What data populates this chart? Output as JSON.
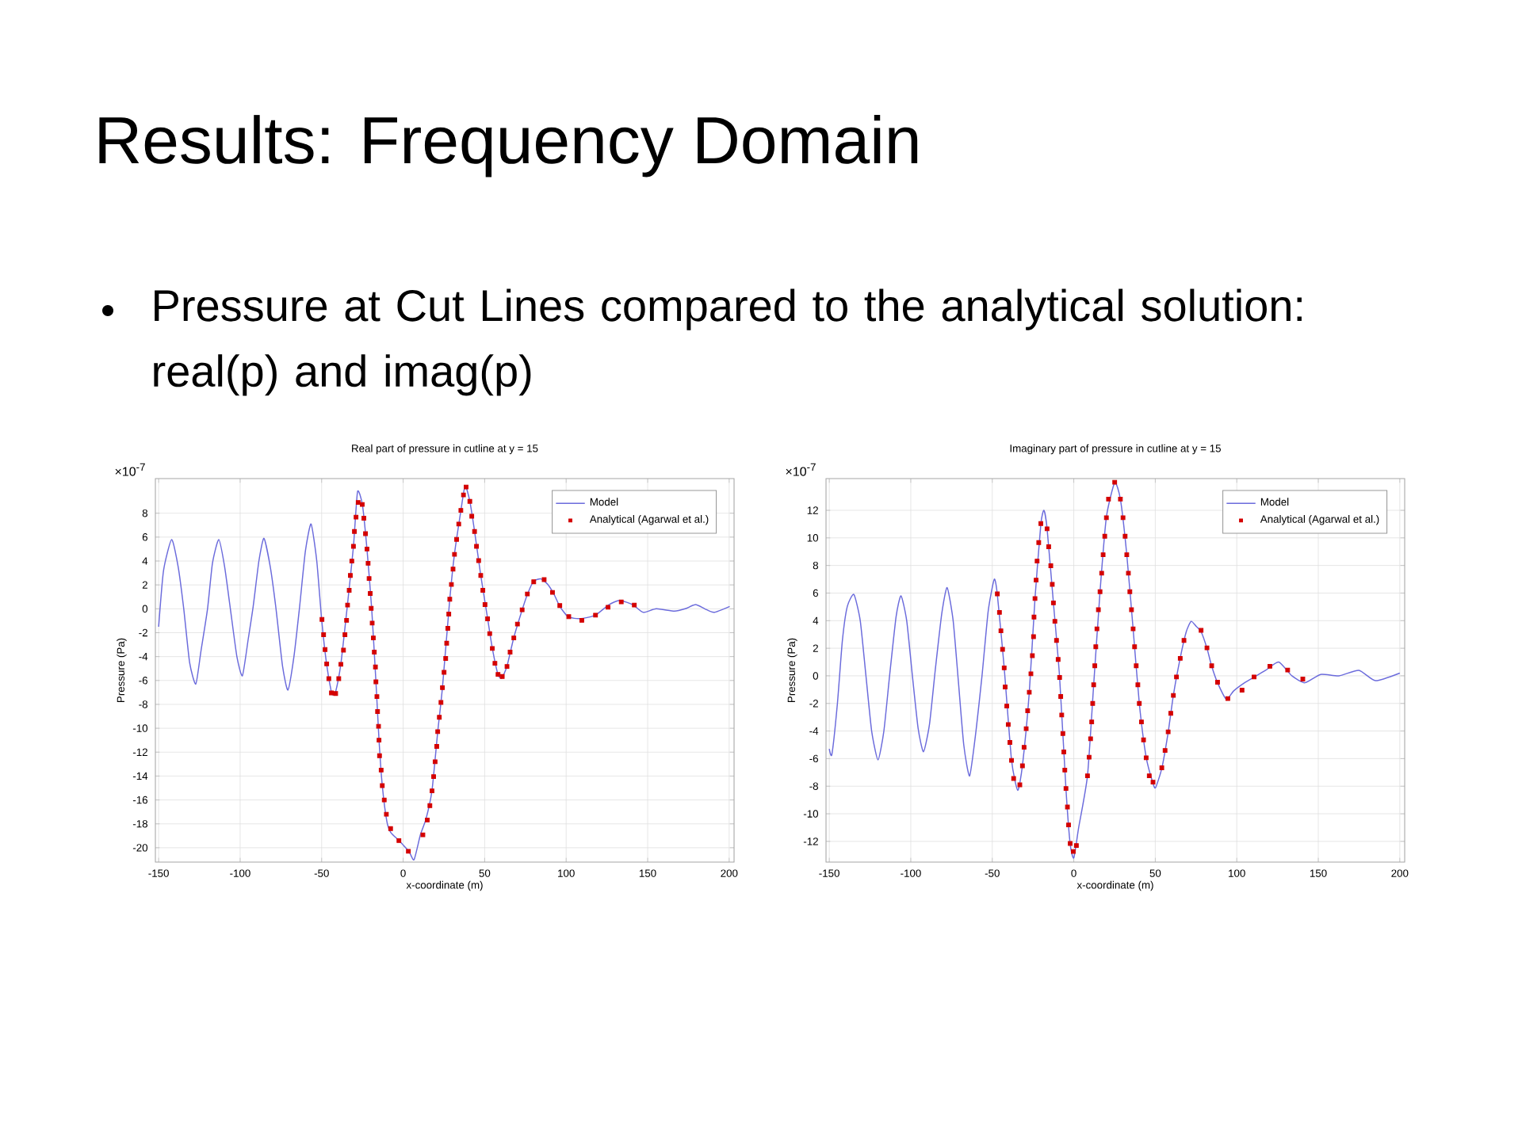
{
  "chart_data": [
    {
      "type": "other",
      "title": "Results: Frequency Domain",
      "annotations": [
        "Pressure at Cut Lines compared to the analytical solution: real(p) and imag(p)"
      ]
    },
    {
      "type": "line",
      "title": "Real part of pressure in cutline at y = 15",
      "xlabel": "x-coordinate (m)",
      "ylabel": "Pressure (Pa)",
      "annotations": [
        "×10$^{-7}$"
      ],
      "xlim": [
        -152,
        203
      ],
      "ylim": [
        -21.2,
        10.9
      ],
      "xticks": [
        -150,
        -100,
        -50,
        0,
        50,
        100,
        150,
        200
      ],
      "yticks": [
        -20,
        -18,
        -16,
        -14,
        -12,
        -10,
        -8,
        -6,
        -4,
        -2,
        0,
        2,
        4,
        6,
        8
      ],
      "grid": true,
      "legend": "top right",
      "series": [
        {
          "name": "Model",
          "type": "line",
          "marker": "none",
          "color": "#6b6bdc",
          "x": [
            -150,
            -147,
            -142,
            -138,
            -134.6,
            -131,
            -127.2,
            -124,
            -120,
            -117,
            -113.1,
            -109.5,
            -106,
            -102,
            -98.6,
            -95,
            -92,
            -88.5,
            -85.4,
            -81.5,
            -78,
            -74,
            -70.7,
            -67,
            -63.5,
            -60,
            -56.5,
            -53,
            -50,
            -47,
            -44,
            -43,
            -41.5,
            -38.2,
            -34.2,
            -30.5,
            -28,
            -25,
            -22.2,
            -19.3,
            -16.7,
            -14.8,
            -12.8,
            -10,
            -7.7,
            -2.6,
            3.5,
            6.7,
            10.6,
            14,
            17.7,
            21.2,
            24.1,
            28.6,
            31.5,
            35.4,
            38,
            40.9,
            43.8,
            47.6,
            51.8,
            54.7,
            58.2,
            60.5,
            63.7,
            67.9,
            73,
            76.2,
            80,
            84.6,
            89,
            92.6,
            96.1,
            100.6,
            105,
            110.3,
            118.3,
            126.3,
            132.8,
            140.8,
            147.3,
            155.3,
            166.5,
            173,
            179.4,
            185,
            190.6,
            200.3
          ],
          "values": [
            -1.5,
            3.2,
            5.8,
            3.5,
            0,
            -4.5,
            -6.3,
            -3.5,
            0,
            3.8,
            5.8,
            3.5,
            0,
            -4,
            -5.6,
            -2.5,
            0.2,
            4,
            5.9,
            3.5,
            0,
            -4.8,
            -6.8,
            -4,
            0.2,
            4.8,
            7.1,
            4,
            -0.9,
            -4.6,
            -7,
            -7.2,
            -7,
            -4.6,
            0.3,
            5.2,
            9.8,
            8.7,
            5,
            0,
            -6.1,
            -11,
            -14.8,
            -17.8,
            -18.7,
            -19.4,
            -20.3,
            -21,
            -18.9,
            -17.6,
            -15.2,
            -10.3,
            -6.6,
            0.8,
            4.6,
            8.2,
            10.3,
            9,
            6.5,
            2.8,
            -0.8,
            -3.3,
            -5.5,
            -5.8,
            -4.8,
            -2.4,
            -0.1,
            1.2,
            2.3,
            2.5,
            2,
            1.2,
            0.2,
            -0.6,
            -0.8,
            -0.8,
            -0.5,
            0.35,
            0.7,
            0.35,
            -0.3,
            0,
            -0.2,
            0,
            0.35,
            0,
            -0.3,
            0.2
          ]
        },
        {
          "name": "Analytical (Agarwal et al.)",
          "type": "scatter",
          "marker": "square",
          "color": "#d40000",
          "x": [
            -49.8,
            -48.8,
            -47.9,
            -46.9,
            -45.6,
            -44,
            -41.4,
            -39.5,
            -38.2,
            -36.6,
            -35.7,
            -34.7,
            -34.1,
            -33.1,
            -32.4,
            -31.5,
            -30.5,
            -29.9,
            -28.9,
            -27.6,
            -25.1,
            -24.1,
            -23.1,
            -22.2,
            -21.5,
            -20.9,
            -20.2,
            -19.6,
            -19,
            -18.3,
            -17.7,
            -17,
            -16.7,
            -16.1,
            -15.7,
            -15.1,
            -14.8,
            -14.5,
            -13.5,
            -12.8,
            -11.6,
            -10.3,
            -7.7,
            -2.6,
            3.2,
            12.1,
            14.8,
            16.4,
            17.7,
            18.7,
            19.6,
            20.6,
            21.2,
            22.2,
            23.2,
            24.1,
            25.1,
            26.1,
            26.7,
            27.4,
            28,
            28.6,
            29.6,
            30.6,
            31.5,
            32.8,
            34.1,
            35.4,
            37,
            38.6,
            40.9,
            42.1,
            43.8,
            45,
            46.3,
            47.6,
            48.9,
            50.2,
            51.8,
            53.1,
            54.7,
            56.3,
            58.2,
            60.8,
            63.7,
            65.6,
            67.9,
            70.1,
            73,
            76.2,
            80.1,
            86.5,
            91.6,
            96.1,
            101.6,
            109.6,
            118,
            125.7,
            133.8,
            141.8
          ],
          "values": [
            -0.89,
            -2.17,
            -3.41,
            -4.61,
            -5.85,
            -7.04,
            -7.09,
            -5.85,
            -4.65,
            -3.46,
            -2.17,
            -0.97,
            0.31,
            1.55,
            2.79,
            3.99,
            5.23,
            6.47,
            7.67,
            8.9,
            8.73,
            7.58,
            6.29,
            5,
            3.81,
            2.53,
            1.28,
            0.04,
            -1.2,
            -2.44,
            -3.63,
            -4.87,
            -6.11,
            -7.35,
            -8.6,
            -9.84,
            -11,
            -12.3,
            -13.5,
            -14.8,
            -16,
            -17.2,
            -18.4,
            -19.4,
            -20.3,
            -18.92,
            -17.68,
            -16.48,
            -15.24,
            -14.05,
            -12.8,
            -11.52,
            -10.28,
            -9.08,
            -7.84,
            -6.6,
            -5.32,
            -4.16,
            -2.88,
            -1.64,
            -0.44,
            0.8,
            2.04,
            3.32,
            4.56,
            5.81,
            7.09,
            8.24,
            9.53,
            10.19,
            8.99,
            7.75,
            6.47,
            5.23,
            4.03,
            2.79,
            1.55,
            0.35,
            -0.84,
            -2.08,
            -3.32,
            -4.56,
            -5.49,
            -5.67,
            -4.83,
            -3.63,
            -2.44,
            -1.28,
            -0.09,
            1.24,
            2.26,
            2.44,
            1.37,
            0.27,
            -0.66,
            -0.97,
            -0.53,
            0.13,
            0.58,
            0.31
          ]
        }
      ]
    },
    {
      "type": "line",
      "title": "Imaginary part of pressure in cutline at y = 15",
      "xlabel": "x-coordinate (m)",
      "ylabel": "Pressure (Pa)",
      "annotations": [
        "×10$^{-7}$"
      ],
      "xlim": [
        -152,
        203
      ],
      "ylim": [
        -13.5,
        14.3
      ],
      "xticks": [
        -150,
        -100,
        -50,
        0,
        50,
        100,
        150,
        200
      ],
      "yticks": [
        -12,
        -10,
        -8,
        -6,
        -4,
        -2,
        0,
        2,
        4,
        6,
        8,
        10,
        12
      ],
      "grid": true,
      "legend": "top right",
      "series": [
        {
          "name": "Model",
          "type": "line",
          "marker": "none",
          "color": "#6b6bdc",
          "x": [
            -150,
            -148.4,
            -145,
            -142,
            -139,
            -134.9,
            -131,
            -127.5,
            -124,
            -120.1,
            -116.5,
            -113,
            -109,
            -106,
            -102.5,
            -99,
            -95.5,
            -92.2,
            -88.5,
            -85,
            -81,
            -77.7,
            -74,
            -70.8,
            -67.5,
            -63.9,
            -60,
            -56.3,
            -52.5,
            -48.8,
            -46.9,
            -42.7,
            -38.2,
            -34.4,
            -31.5,
            -27.3,
            -23.8,
            -20.2,
            -18.3,
            -16.4,
            -12.5,
            -8.7,
            -4.8,
            -2.2,
            0,
            3,
            8.4,
            12.2,
            16.1,
            20,
            25.1,
            28.6,
            32.5,
            36.4,
            40.2,
            44.4,
            48.6,
            50.2,
            54,
            57.9,
            61.1,
            65.3,
            69,
            72,
            75,
            78.1,
            81.7,
            84.6,
            88.2,
            93.6,
            98,
            104.8,
            110.6,
            117.7,
            125.7,
            133.8,
            141.8,
            151.4,
            162.7,
            174.9,
            185.1,
            200
          ],
          "values": [
            -5.3,
            -5.7,
            -2,
            2.5,
            5,
            5.9,
            4,
            0,
            -4,
            -6.1,
            -4,
            0,
            4.3,
            5.8,
            4,
            0,
            -3.8,
            -5.5,
            -3.5,
            0.4,
            4.5,
            6.4,
            4,
            -0.4,
            -5,
            -7.25,
            -4,
            0,
            4.7,
            7,
            5.9,
            0.6,
            -6.1,
            -8.3,
            -6.5,
            -1.2,
            5.6,
            11,
            12,
            10.7,
            5.3,
            -0.1,
            -8.2,
            -12.2,
            -13.2,
            -11,
            -7.25,
            -0.65,
            6.1,
            11.5,
            14,
            12.8,
            8.8,
            3.4,
            -2,
            -5.9,
            -7.8,
            -8.1,
            -6.7,
            -4.1,
            -1.4,
            1.3,
            3.2,
            3.95,
            3.6,
            3.2,
            2,
            0.7,
            -0.5,
            -1.7,
            -1.1,
            -0.5,
            -0.1,
            0.4,
            1,
            0,
            -0.5,
            0.1,
            0,
            0.4,
            -0.35,
            0.2
          ]
        },
        {
          "name": "Analytical (Agarwal et al.)",
          "type": "scatter",
          "marker": "square",
          "color": "#d40000",
          "x": [
            -46.9,
            -45.6,
            -44.7,
            -43.7,
            -42.7,
            -42.1,
            -41.1,
            -40.2,
            -39.2,
            -38.2,
            -36.9,
            -33.1,
            -31.5,
            -30.5,
            -29.2,
            -28.3,
            -27.3,
            -26.3,
            -25.4,
            -24.7,
            -24.4,
            -23.8,
            -23.1,
            -22.5,
            -21.5,
            -20.2,
            -16.4,
            -15.4,
            -14.1,
            -13.2,
            -12.5,
            -11.6,
            -10.6,
            -9.6,
            -8.7,
            -8,
            -7.4,
            -6.7,
            -6.1,
            -5.5,
            -4.8,
            -3.9,
            -3.2,
            -2.2,
            -0.3,
            1.6,
            8.4,
            9.4,
            10.3,
            11,
            11.6,
            12.2,
            12.9,
            13.5,
            14.2,
            15.1,
            16.1,
            17.1,
            18,
            19,
            20,
            21.3,
            25.1,
            28.6,
            30.2,
            31.5,
            32.5,
            33.5,
            34.4,
            35.4,
            36.4,
            37.3,
            38.3,
            39.3,
            40.2,
            41.5,
            42.8,
            44.4,
            46.3,
            48.6,
            54,
            56,
            57.9,
            59.5,
            61.1,
            63,
            65.3,
            67.6,
            78.1,
            81.7,
            84.6,
            88.2,
            94.5,
            103.2,
            110.6,
            120.3,
            131.2,
            140.5
          ],
          "values": [
            5.94,
            4.6,
            3.26,
            1.92,
            0.58,
            -0.81,
            -2.19,
            -3.53,
            -4.83,
            -6.13,
            -7.44,
            -7.9,
            -6.52,
            -5.18,
            -3.83,
            -2.53,
            -1.19,
            0.15,
            1.46,
            2.84,
            4.26,
            5.6,
            6.94,
            8.32,
            9.66,
            11.04,
            10.66,
            9.36,
            7.98,
            6.63,
            5.29,
            3.95,
            2.57,
            1.19,
            -0.12,
            -1.5,
            -2.84,
            -4.18,
            -5.52,
            -6.83,
            -8.17,
            -9.51,
            -10.81,
            -12.15,
            -12.73,
            -12.3,
            -7.25,
            -5.9,
            -4.56,
            -3.34,
            -2,
            -0.65,
            0.73,
            2.11,
            3.41,
            4.79,
            6.1,
            7.44,
            8.78,
            10.12,
            11.46,
            12.81,
            14.03,
            12.81,
            11.46,
            10.12,
            8.78,
            7.44,
            6.1,
            4.79,
            3.41,
            2.11,
            0.73,
            -0.65,
            -2,
            -3.34,
            -4.64,
            -5.94,
            -7.25,
            -7.71,
            -6.67,
            -5.41,
            -4.06,
            -2.72,
            -1.42,
            -0.08,
            1.27,
            2.57,
            3.3,
            2.03,
            0.73,
            -0.46,
            -1.65,
            -1.04,
            -0.08,
            0.69,
            0.42,
            -0.23
          ]
        }
      ]
    }
  ]
}
